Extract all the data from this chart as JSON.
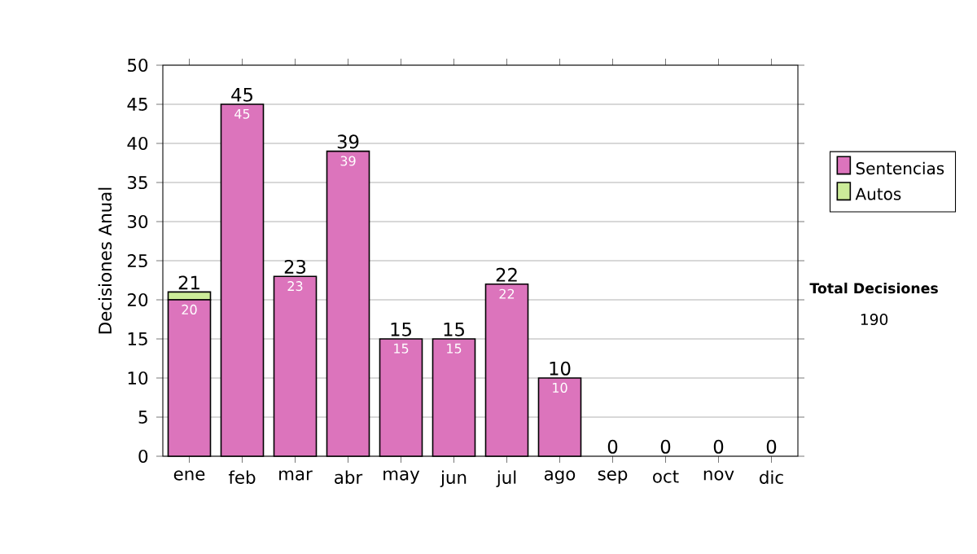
{
  "chart_data": {
    "type": "bar",
    "stacked": true,
    "ylabel": "Decisiones Anual",
    "categories": [
      "ene",
      "feb",
      "mar",
      "abr",
      "may",
      "jun",
      "jul",
      "ago",
      "sep",
      "oct",
      "nov",
      "dic"
    ],
    "series": [
      {
        "name": "Sentencias",
        "color": "#dc74bc",
        "values": [
          20,
          45,
          23,
          39,
          15,
          15,
          22,
          10,
          0,
          0,
          0,
          0
        ],
        "value_labels": [
          "20",
          "45",
          "23",
          "39",
          "15",
          "15",
          "22",
          "10",
          null,
          null,
          null,
          null
        ]
      },
      {
        "name": "Autos",
        "color": "#ccec99",
        "values": [
          1,
          0,
          0,
          0,
          0,
          0,
          0,
          0,
          0,
          0,
          0,
          0
        ]
      }
    ],
    "totals": [
      "21",
      "45",
      "23",
      "39",
      "15",
      "15",
      "22",
      "10",
      "0",
      "0",
      "0",
      "0"
    ],
    "ylim": [
      0,
      50
    ],
    "yticks": [
      0,
      5,
      10,
      15,
      20,
      25,
      30,
      35,
      40,
      45,
      50
    ],
    "grid": "y",
    "legend": "right",
    "annotations": [
      "Total Decisiones",
      "190"
    ]
  }
}
